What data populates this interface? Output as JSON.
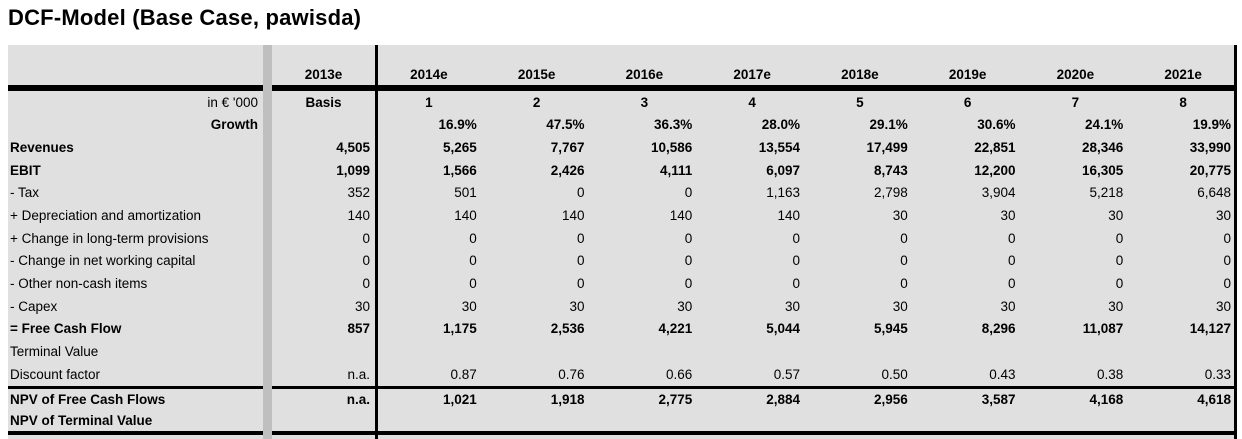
{
  "title": "DCF-Model (Base Case, pawisda)",
  "colors": {
    "sheet_background": "#e0e0e0",
    "divider_strip": "#bfbfbf",
    "border_line": "#000000",
    "text": "#000000"
  },
  "table": {
    "unit_label": "in € '000",
    "years": [
      "2013e",
      "2014e",
      "2015e",
      "2016e",
      "2017e",
      "2018e",
      "2019e",
      "2020e",
      "2021e"
    ],
    "period_row": [
      "Basis",
      "1",
      "2",
      "3",
      "4",
      "5",
      "6",
      "7",
      "8"
    ],
    "rows": [
      {
        "label": "Growth",
        "bold": true,
        "label_align": "right",
        "values": [
          "",
          "16.9%",
          "47.5%",
          "36.3%",
          "28.0%",
          "29.1%",
          "30.6%",
          "24.1%",
          "19.9%"
        ]
      },
      {
        "label": "Revenues",
        "bold": true,
        "label_align": "left",
        "values": [
          "4,505",
          "5,265",
          "7,767",
          "10,586",
          "13,554",
          "17,499",
          "22,851",
          "28,346",
          "33,990"
        ]
      },
      {
        "label": "EBIT",
        "bold": true,
        "label_align": "left",
        "values": [
          "1,099",
          "1,566",
          "2,426",
          "4,111",
          "6,097",
          "8,743",
          "12,200",
          "16,305",
          "20,775"
        ]
      },
      {
        "label": "- Tax",
        "bold": false,
        "label_align": "left",
        "values": [
          "352",
          "501",
          "0",
          "0",
          "1,163",
          "2,798",
          "3,904",
          "5,218",
          "6,648"
        ]
      },
      {
        "label": "+ Depreciation and amortization",
        "bold": false,
        "label_align": "left",
        "values": [
          "140",
          "140",
          "140",
          "140",
          "140",
          "30",
          "30",
          "30",
          "30"
        ]
      },
      {
        "label": "+ Change in long-term provisions",
        "bold": false,
        "label_align": "left",
        "values": [
          "0",
          "0",
          "0",
          "0",
          "0",
          "0",
          "0",
          "0",
          "0"
        ]
      },
      {
        "label": "- Change in net working capital",
        "bold": false,
        "label_align": "left",
        "values": [
          "0",
          "0",
          "0",
          "0",
          "0",
          "0",
          "0",
          "0",
          "0"
        ]
      },
      {
        "label": "- Other non-cash items",
        "bold": false,
        "label_align": "left",
        "values": [
          "0",
          "0",
          "0",
          "0",
          "0",
          "0",
          "0",
          "0",
          "0"
        ]
      },
      {
        "label": "- Capex",
        "bold": false,
        "label_align": "left",
        "values": [
          "30",
          "30",
          "30",
          "30",
          "30",
          "30",
          "30",
          "30",
          "30"
        ]
      },
      {
        "label": "= Free Cash Flow",
        "bold": true,
        "label_align": "left",
        "values": [
          "857",
          "1,175",
          "2,536",
          "4,221",
          "5,044",
          "5,945",
          "8,296",
          "11,087",
          "14,127"
        ]
      },
      {
        "label": "Terminal Value",
        "bold": false,
        "label_align": "left",
        "values": [
          "",
          "",
          "",
          "",
          "",
          "",
          "",
          "",
          ""
        ]
      },
      {
        "label": "Discount factor",
        "bold": false,
        "label_align": "left",
        "values": [
          "n.a.",
          "0.87",
          "0.76",
          "0.66",
          "0.57",
          "0.50",
          "0.43",
          "0.38",
          "0.33"
        ]
      }
    ],
    "summary_rows": [
      {
        "label": "NPV of Free Cash Flows",
        "bold": true,
        "label_align": "left",
        "values": [
          "n.a.",
          "1,021",
          "1,918",
          "2,775",
          "2,884",
          "2,956",
          "3,587",
          "4,168",
          "4,618"
        ]
      },
      {
        "label": "NPV of Terminal Value",
        "bold": true,
        "label_align": "left",
        "values": [
          "",
          "",
          "",
          "",
          "",
          "",
          "",
          "",
          ""
        ]
      }
    ]
  }
}
